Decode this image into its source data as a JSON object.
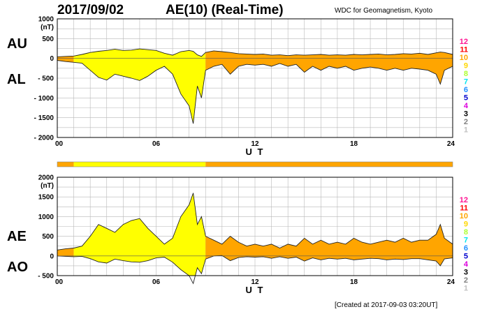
{
  "header": {
    "date": "2017/09/02",
    "title": "AE(10) (Real-Time)",
    "source": "WDC for Geomagnetism, Kyoto"
  },
  "footer": {
    "created": "[Created at 2017-09-03 03:20UT]"
  },
  "legend": {
    "items": [
      {
        "label": "12",
        "color": "#ff1493"
      },
      {
        "label": "11",
        "color": "#ff0000"
      },
      {
        "label": "10",
        "color": "#ffa500"
      },
      {
        "label": "9",
        "color": "#ffd700"
      },
      {
        "label": "8",
        "color": "#adff2f"
      },
      {
        "label": "7",
        "color": "#00e5ee"
      },
      {
        "label": "6",
        "color": "#1e90ff"
      },
      {
        "label": "5",
        "color": "#0000cd"
      },
      {
        "label": "4",
        "color": "#dd00dd"
      },
      {
        "label": "3",
        "color": "#000000"
      },
      {
        "label": "2",
        "color": "#808080"
      },
      {
        "label": "1",
        "color": "#c0c0c0"
      }
    ]
  },
  "station_bar": {
    "segments": [
      {
        "from": 0,
        "to": 1,
        "label": "10",
        "color": "#ffa500"
      },
      {
        "from": 1,
        "to": 9,
        "label": "9",
        "color": "#ffff00"
      },
      {
        "from": 9,
        "to": 24,
        "label": "10",
        "color": "#ffa500"
      }
    ]
  },
  "chart_data": [
    {
      "type": "area",
      "unit": "(nT)",
      "xlabel": "U T",
      "series_labels": [
        "AU",
        "AL"
      ],
      "xlim": [
        0,
        24
      ],
      "ylim": [
        -2000,
        1000
      ],
      "yticks": [
        1000,
        500,
        0,
        -500,
        -1000,
        -1500,
        -2000
      ],
      "ytick_labels": [
        "1000",
        "500",
        "0",
        "- 500",
        "- 1000",
        "- 1500",
        "- 2000"
      ],
      "xticks": [
        0,
        6,
        12,
        18,
        24
      ],
      "xtick_labels": [
        "00",
        "06",
        "12",
        "18",
        "24"
      ],
      "x": [
        0,
        0.5,
        1,
        1.5,
        2,
        2.5,
        3,
        3.5,
        4,
        4.5,
        5,
        5.5,
        6,
        6.5,
        7,
        7.5,
        8,
        8.25,
        8.5,
        8.75,
        9,
        9.5,
        10,
        10.5,
        11,
        11.5,
        12,
        12.5,
        13,
        13.5,
        14,
        14.5,
        15,
        15.5,
        16,
        16.5,
        17,
        17.5,
        18,
        18.5,
        19,
        19.5,
        20,
        20.5,
        21,
        21.5,
        22,
        22.5,
        23,
        23.25,
        23.5,
        24
      ],
      "au": [
        40,
        50,
        60,
        100,
        150,
        180,
        200,
        230,
        200,
        210,
        240,
        220,
        200,
        130,
        80,
        170,
        200,
        180,
        90,
        50,
        150,
        190,
        170,
        150,
        120,
        110,
        100,
        110,
        80,
        90,
        70,
        90,
        80,
        90,
        100,
        80,
        90,
        80,
        100,
        90,
        100,
        110,
        90,
        100,
        120,
        110,
        130,
        100,
        140,
        160,
        150,
        100
      ],
      "al": [
        -50,
        -80,
        -100,
        -120,
        -300,
        -480,
        -550,
        -400,
        -450,
        -500,
        -560,
        -450,
        -300,
        -200,
        -400,
        -900,
        -1200,
        -1650,
        -700,
        -1000,
        -300,
        -200,
        -150,
        -400,
        -200,
        -150,
        -170,
        -150,
        -200,
        -130,
        -200,
        -150,
        -350,
        -200,
        -300,
        -200,
        -250,
        -200,
        -300,
        -250,
        -220,
        -250,
        -300,
        -250,
        -300,
        -250,
        -270,
        -300,
        -400,
        -650,
        -300,
        -200
      ],
      "colors": [
        {
          "from": 0,
          "to": 1,
          "color": "#ffa500"
        },
        {
          "from": 1,
          "to": 9,
          "color": "#ffff00"
        },
        {
          "from": 9,
          "to": 24,
          "color": "#ffa500"
        }
      ]
    },
    {
      "type": "area",
      "unit": "(nT)",
      "xlabel": "U T",
      "series_labels": [
        "AE",
        "AO"
      ],
      "xlim": [
        0,
        24
      ],
      "ylim": [
        -500,
        2000
      ],
      "yticks": [
        2000,
        1500,
        1000,
        500,
        0,
        -500
      ],
      "ytick_labels": [
        "2000",
        "1500",
        "1000",
        "500",
        "0",
        "- 500"
      ],
      "xticks": [
        0,
        6,
        12,
        18,
        24
      ],
      "xtick_labels": [
        "00",
        "06",
        "12",
        "18",
        "24"
      ],
      "x": [
        0,
        0.5,
        1,
        1.5,
        2,
        2.5,
        3,
        3.5,
        4,
        4.5,
        5,
        5.5,
        6,
        6.5,
        7,
        7.5,
        8,
        8.25,
        8.5,
        8.75,
        9,
        9.5,
        10,
        10.5,
        11,
        11.5,
        12,
        12.5,
        13,
        13.5,
        14,
        14.5,
        15,
        15.5,
        16,
        16.5,
        17,
        17.5,
        18,
        18.5,
        19,
        19.5,
        20,
        20.5,
        21,
        21.5,
        22,
        22.5,
        23,
        23.25,
        23.5,
        24
      ],
      "ae": [
        150,
        180,
        200,
        250,
        500,
        800,
        700,
        600,
        800,
        900,
        950,
        700,
        500,
        300,
        450,
        1000,
        1300,
        1600,
        800,
        1000,
        500,
        400,
        300,
        500,
        350,
        250,
        300,
        250,
        300,
        200,
        300,
        250,
        450,
        300,
        400,
        300,
        350,
        300,
        450,
        350,
        300,
        350,
        400,
        350,
        450,
        350,
        400,
        400,
        550,
        800,
        450,
        300
      ],
      "ao": [
        0,
        -10,
        -20,
        -10,
        -70,
        -150,
        -180,
        -80,
        -120,
        -150,
        -160,
        -120,
        -50,
        -30,
        -160,
        -350,
        -500,
        -700,
        -300,
        -450,
        -80,
        0,
        10,
        -120,
        -40,
        -20,
        -30,
        -20,
        -60,
        -20,
        -60,
        -30,
        -130,
        -50,
        -100,
        -60,
        -80,
        -60,
        -100,
        -80,
        -60,
        -70,
        -100,
        -80,
        -90,
        -70,
        -70,
        -100,
        -130,
        -250,
        -75,
        -50
      ],
      "colors": [
        {
          "from": 0,
          "to": 1,
          "color": "#ffa500"
        },
        {
          "from": 1,
          "to": 9,
          "color": "#ffff00"
        },
        {
          "from": 9,
          "to": 24,
          "color": "#ffa500"
        }
      ]
    }
  ]
}
